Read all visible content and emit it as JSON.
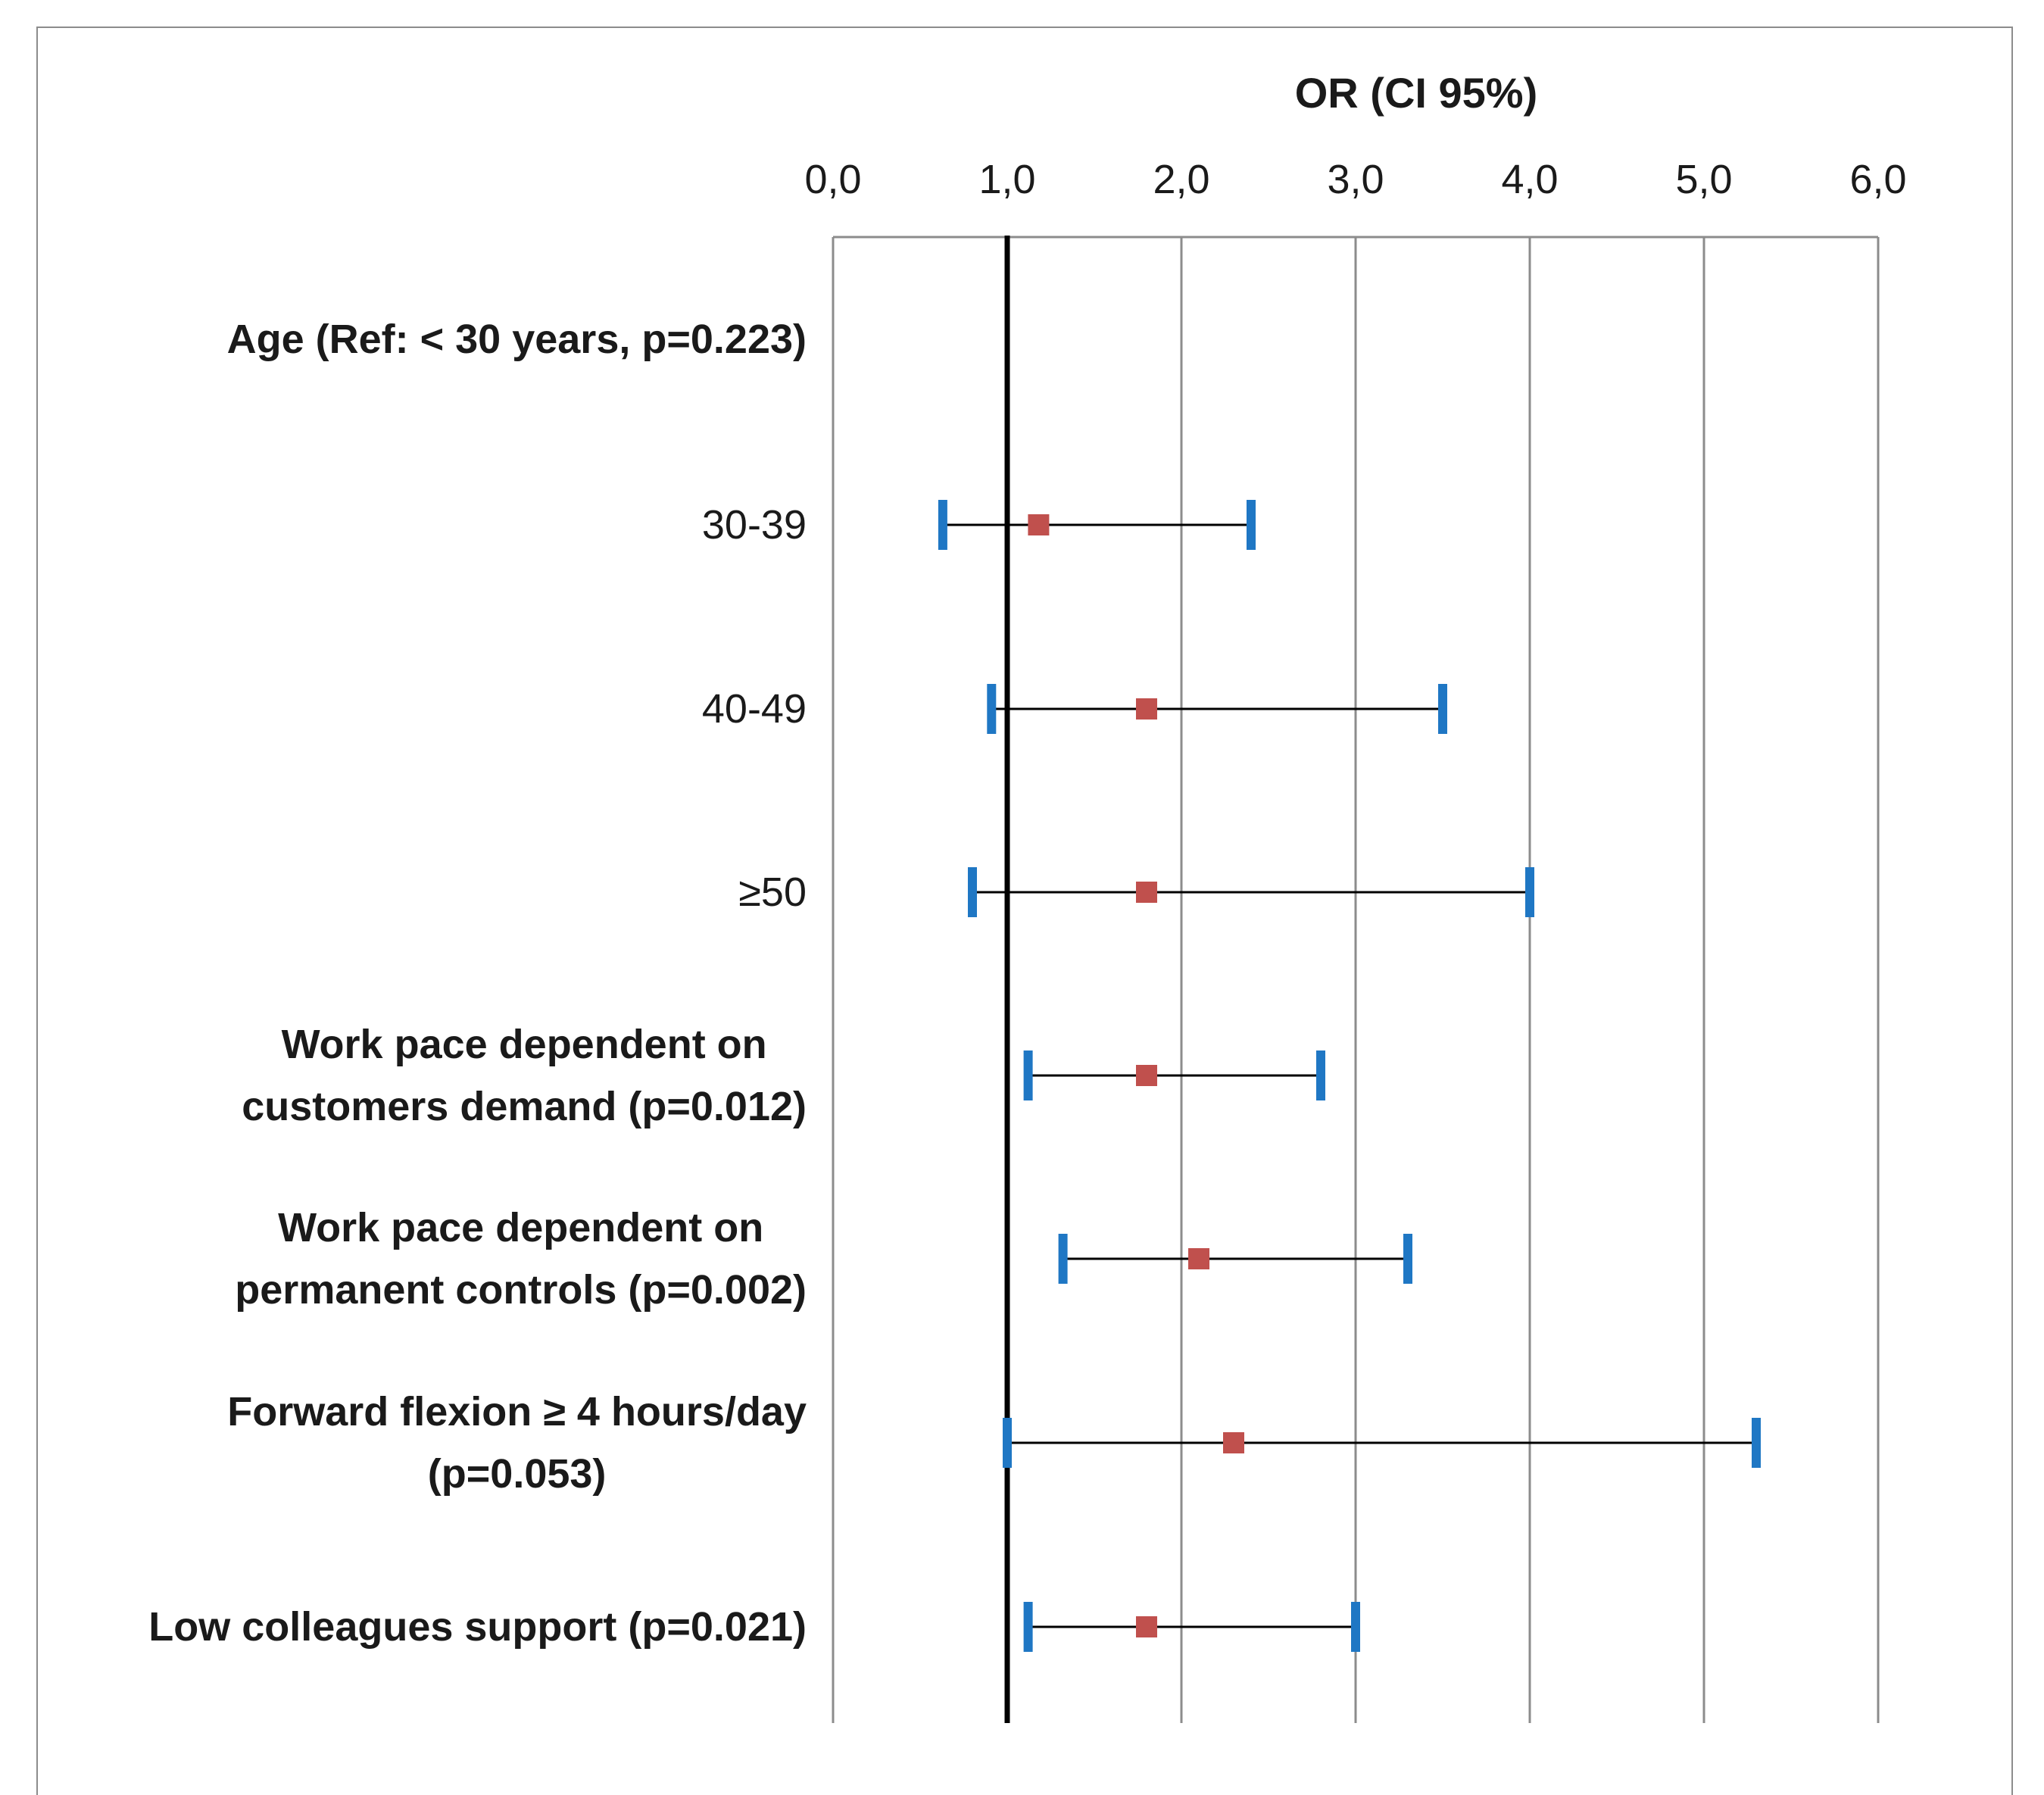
{
  "chart_data": {
    "type": "forest",
    "title": "OR (CI 95%)",
    "xlim": [
      0,
      6
    ],
    "x_ticks": [
      0,
      1,
      2,
      3,
      4,
      5,
      6
    ],
    "x_tick_labels": [
      "0,0",
      "1,0",
      "2,0",
      "3,0",
      "4,0",
      "5,0",
      "6,0"
    ],
    "reference_line": 1.0,
    "grid": true,
    "colors": {
      "point": "#c0504d",
      "ci_cap": "#1f77c4",
      "ci_line": "#000000",
      "grid": "#8c8c8c",
      "reference": "#000000"
    },
    "rows": [
      {
        "label": [
          "Age (Ref: < 30 years, p=0.223)"
        ],
        "bold": true,
        "or": null,
        "lower": null,
        "upper": null
      },
      {
        "label": [
          "30-39"
        ],
        "bold": false,
        "or": 1.18,
        "lower": 0.63,
        "upper": 2.4
      },
      {
        "label": [
          "40-49"
        ],
        "bold": false,
        "or": 1.8,
        "lower": 0.91,
        "upper": 3.5
      },
      {
        "label": [
          "≥50"
        ],
        "bold": false,
        "or": 1.8,
        "lower": 0.8,
        "upper": 4.0
      },
      {
        "label": [
          "Work pace dependent on",
          "customers demand (p=0.012)"
        ],
        "bold": true,
        "or": 1.8,
        "lower": 1.12,
        "upper": 2.8
      },
      {
        "label": [
          "Work pace dependent on",
          "permanent controls (p=0.002)"
        ],
        "bold": true,
        "or": 2.1,
        "lower": 1.32,
        "upper": 3.3
      },
      {
        "label": [
          "Forward flexion ≥ 4 hours/day",
          "(p=0.053)"
        ],
        "bold": true,
        "or": 2.3,
        "lower": 1.0,
        "upper": 5.3
      },
      {
        "label": [
          "Low colleagues support (p=0.021)"
        ],
        "bold": true,
        "or": 1.8,
        "lower": 1.12,
        "upper": 3.0
      }
    ]
  }
}
